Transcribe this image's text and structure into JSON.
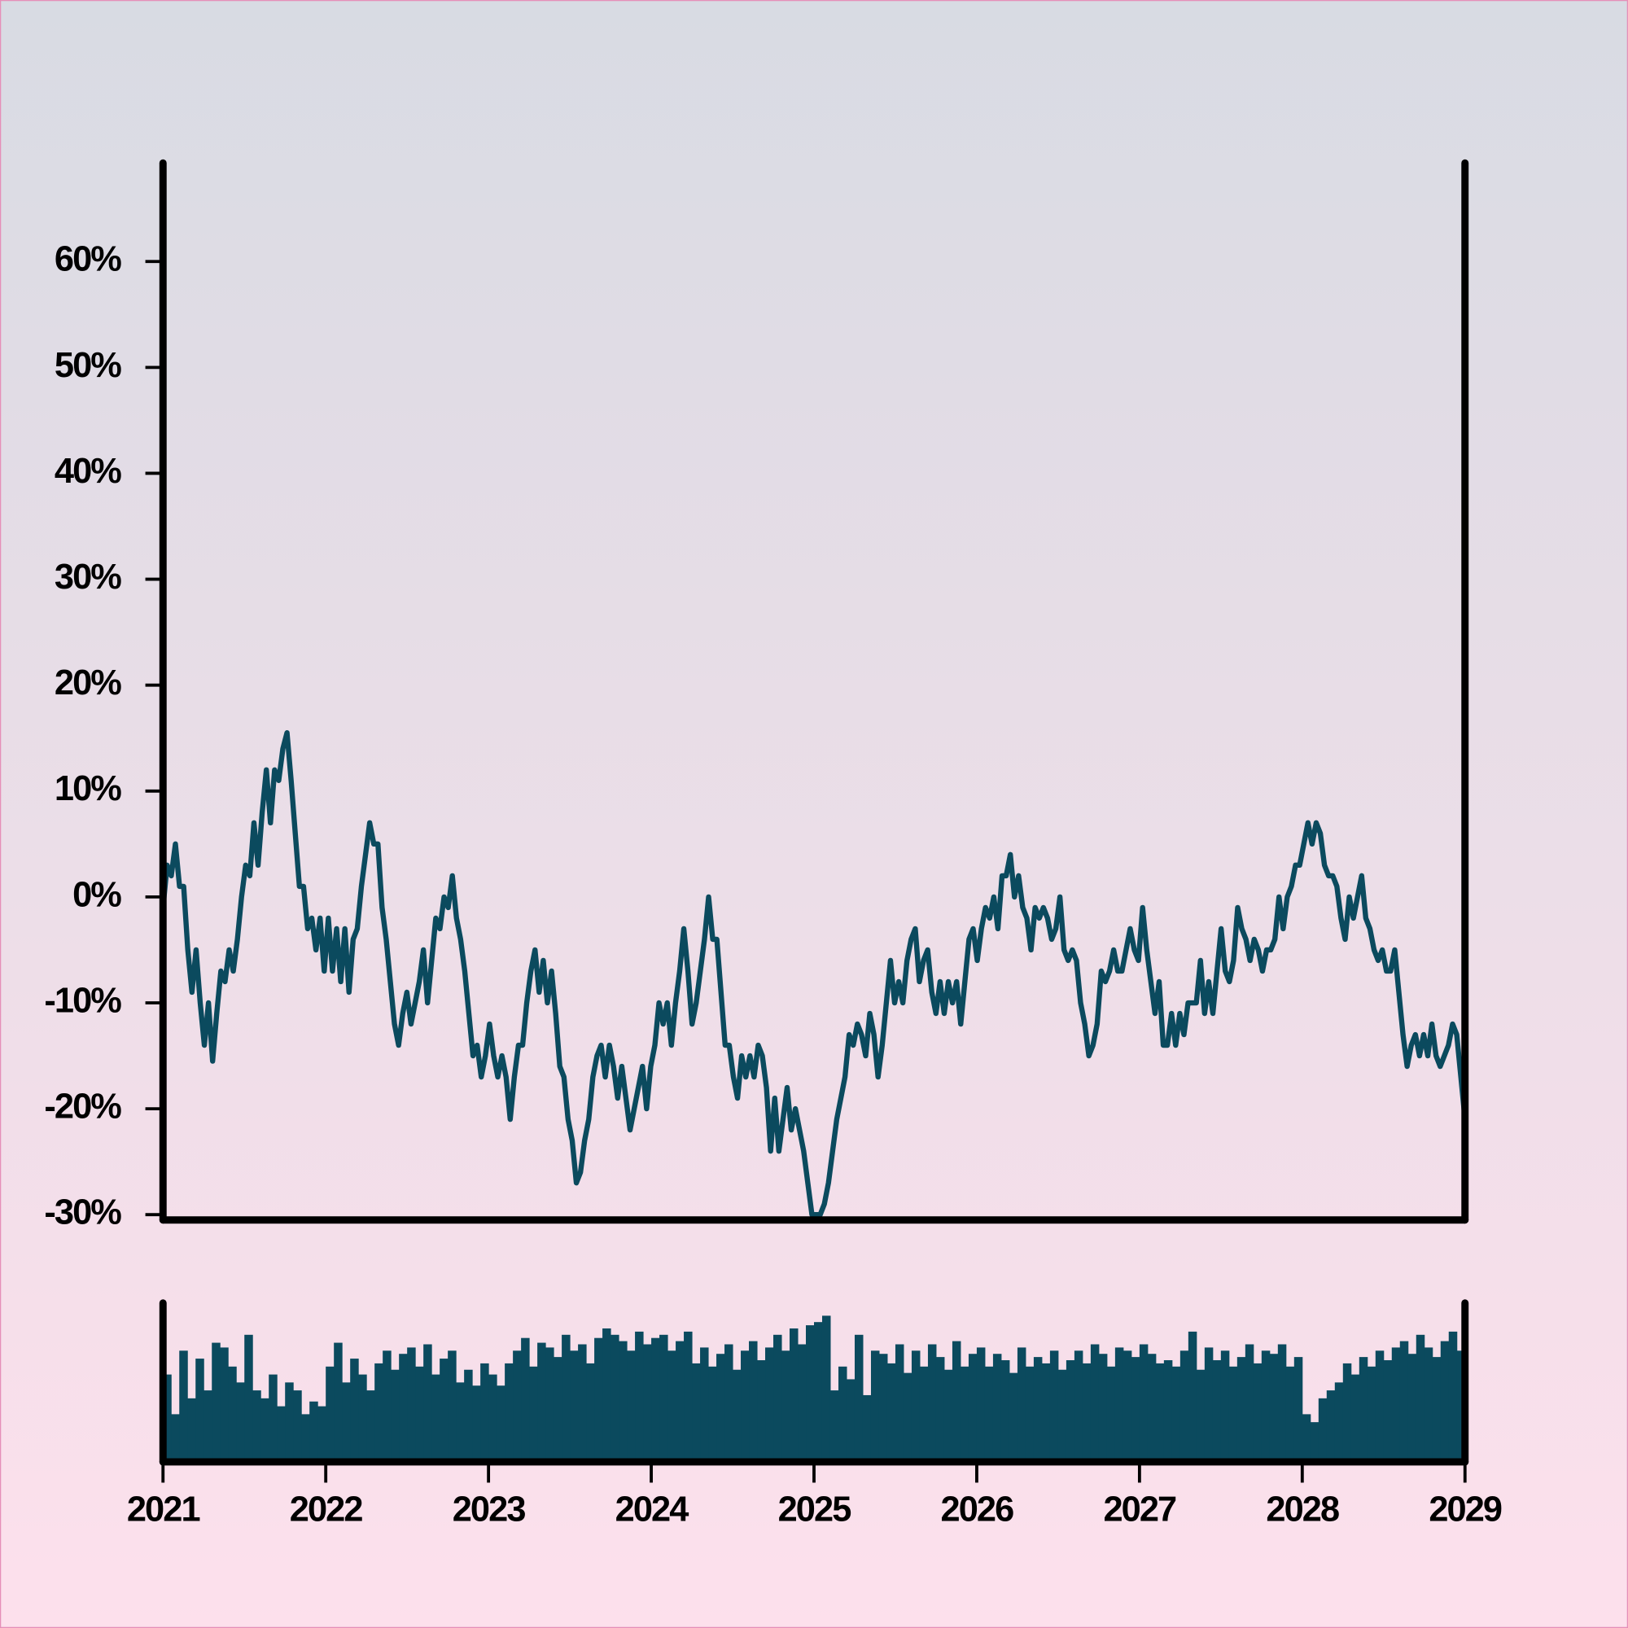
{
  "chart_data": [
    {
      "type": "line",
      "color": "#0b4a5e",
      "xlim": [
        2021,
        2029
      ],
      "ylim": [
        -30.5,
        69.3
      ],
      "yticks": [
        {
          "value": -30,
          "label": "-30%"
        },
        {
          "value": -20,
          "label": "-20%"
        },
        {
          "value": -10,
          "label": "-10%"
        },
        {
          "value": 0,
          "label": "0%"
        },
        {
          "value": 10,
          "label": "10%"
        },
        {
          "value": 20,
          "label": "20%"
        },
        {
          "value": 30,
          "label": "30%"
        },
        {
          "value": 40,
          "label": "40%"
        },
        {
          "value": 50,
          "label": "50%"
        },
        {
          "value": 60,
          "label": "60%"
        }
      ],
      "values": [
        -1,
        3,
        2,
        5,
        1,
        1,
        -5,
        -9,
        -5,
        -10,
        -14,
        -10,
        -15.5,
        -11,
        -7,
        -8,
        -5,
        -7,
        -4,
        0,
        3,
        2,
        7,
        3,
        8,
        12,
        7,
        12,
        11,
        14,
        15.5,
        11,
        6,
        1,
        1,
        -3,
        -2,
        -5,
        -2,
        -7,
        -2,
        -7,
        -3,
        -8,
        -3,
        -9,
        -4,
        -3,
        1,
        4,
        7,
        5,
        5,
        -1,
        -4,
        -8,
        -12,
        -14,
        -11,
        -9,
        -12,
        -10,
        -8,
        -5,
        -10,
        -6,
        -2,
        -3,
        0,
        -1,
        2,
        -2,
        -4,
        -7,
        -11,
        -15,
        -14,
        -17,
        -15,
        -12,
        -15,
        -17,
        -15,
        -17,
        -21,
        -17,
        -14,
        -14,
        -10,
        -7,
        -5,
        -9,
        -6,
        -10,
        -7,
        -11,
        -16,
        -17,
        -21,
        -23,
        -27,
        -26,
        -23,
        -21,
        -17,
        -15,
        -14,
        -17,
        -14,
        -16,
        -19,
        -16,
        -19,
        -22,
        -20,
        -18,
        -16,
        -20,
        -16,
        -14,
        -10,
        -12,
        -10,
        -14,
        -10,
        -7,
        -3,
        -7,
        -12,
        -10,
        -7,
        -4,
        0,
        -4,
        -4,
        -9,
        -14,
        -14,
        -17,
        -19,
        -15,
        -17,
        -15,
        -17,
        -14,
        -15,
        -18,
        -24,
        -19,
        -24,
        -21,
        -18,
        -22,
        -20,
        -22,
        -24,
        -27,
        -30,
        -30,
        -30,
        -29,
        -27,
        -24,
        -21,
        -19,
        -17,
        -13,
        -14,
        -12,
        -13,
        -15,
        -11,
        -13,
        -17,
        -14,
        -10,
        -6,
        -10,
        -8,
        -10,
        -6,
        -4,
        -3,
        -8,
        -6,
        -5,
        -9,
        -11,
        -8,
        -11,
        -8,
        -10,
        -8,
        -12,
        -8,
        -4,
        -3,
        -6,
        -3,
        -1,
        -2,
        0,
        -3,
        2,
        2,
        4,
        0,
        2,
        -1,
        -2,
        -5,
        -1,
        -2,
        -1,
        -2,
        -4,
        -3,
        0,
        -5,
        -6,
        -5,
        -6,
        -10,
        -12,
        -15,
        -14,
        -12,
        -7,
        -8,
        -7,
        -5,
        -7,
        -7,
        -5,
        -3,
        -5,
        -6,
        -1,
        -5,
        -8,
        -11,
        -8,
        -14,
        -14,
        -11,
        -14,
        -11,
        -13,
        -10,
        -10,
        -10,
        -6,
        -11,
        -8,
        -11,
        -7,
        -3,
        -7,
        -8,
        -6,
        -1,
        -3,
        -4,
        -6,
        -4,
        -5,
        -7,
        -5,
        -5,
        -4,
        0,
        -3,
        0,
        1,
        3,
        3,
        5,
        7,
        5,
        7,
        6,
        3,
        2,
        2,
        1,
        -2,
        -4,
        0,
        -2,
        0,
        2,
        -2,
        -3,
        -5,
        -6,
        -5,
        -7,
        -7,
        -5,
        -9,
        -13,
        -16,
        -14,
        -13,
        -15,
        -13,
        -15,
        -12,
        -15,
        -16,
        -15,
        -14,
        -12,
        -13,
        -17,
        -21
      ]
    },
    {
      "type": "bar",
      "color": "#0b4a5e",
      "xlim": [
        2021,
        2029
      ],
      "ylim": [
        0,
        100
      ],
      "xticks": [
        2021,
        2022,
        2023,
        2024,
        2025,
        2026,
        2027,
        2028,
        2029
      ],
      "values": [
        55,
        30,
        70,
        40,
        65,
        45,
        75,
        72,
        60,
        50,
        80,
        45,
        40,
        55,
        35,
        50,
        45,
        30,
        38,
        35,
        60,
        75,
        50,
        65,
        55,
        45,
        62,
        70,
        58,
        68,
        72,
        60,
        74,
        55,
        65,
        70,
        50,
        58,
        48,
        62,
        55,
        48,
        62,
        70,
        78,
        60,
        75,
        72,
        66,
        80,
        70,
        74,
        62,
        78,
        84,
        80,
        76,
        70,
        82,
        74,
        78,
        80,
        70,
        76,
        82,
        62,
        72,
        60,
        68,
        74,
        58,
        70,
        76,
        64,
        72,
        80,
        70,
        84,
        74,
        86,
        88,
        92,
        45,
        60,
        52,
        80,
        42,
        70,
        68,
        62,
        74,
        56,
        70,
        60,
        74,
        66,
        58,
        76,
        60,
        68,
        72,
        60,
        68,
        64,
        56,
        72,
        60,
        66,
        62,
        70,
        58,
        64,
        70,
        62,
        74,
        68,
        60,
        72,
        70,
        66,
        74,
        68,
        62,
        64,
        60,
        70,
        82,
        58,
        72,
        64,
        70,
        60,
        66,
        74,
        62,
        70,
        68,
        74,
        60,
        66,
        30,
        25,
        40,
        45,
        50,
        62,
        55,
        66,
        60,
        70,
        64,
        72,
        76,
        68,
        80,
        72,
        66,
        76,
        82,
        70
      ]
    }
  ]
}
